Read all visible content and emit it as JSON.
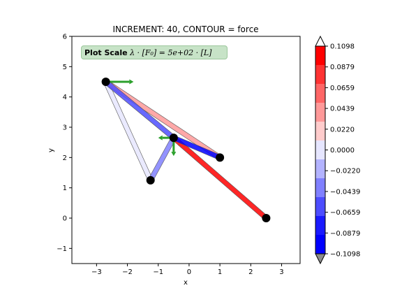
{
  "chart_data": {
    "type": "scatter",
    "title": "INCREMENT: 40, CONTOUR = force",
    "xlabel": "x",
    "ylabel": "y",
    "xlim": [
      -3.8,
      3.6
    ],
    "ylim": [
      -1.5,
      6.0
    ],
    "xticks": [
      -3,
      -2,
      -1,
      0,
      1,
      2,
      3
    ],
    "yticks": [
      -1,
      0,
      1,
      2,
      3,
      4,
      5,
      6
    ],
    "nodes": [
      {
        "x": -2.7,
        "y": 4.5
      },
      {
        "x": -0.5,
        "y": 2.65
      },
      {
        "x": 1.0,
        "y": 2.0
      },
      {
        "x": -1.25,
        "y": 1.25
      },
      {
        "x": 2.5,
        "y": 0.0
      }
    ],
    "elements": [
      {
        "from": 0,
        "to": 3,
        "value": 0.008
      },
      {
        "from": 0,
        "to": 2,
        "value": 0.03
      },
      {
        "from": 1,
        "to": 4,
        "value": 0.095
      },
      {
        "from": 0,
        "to": 1,
        "value": -0.06
      },
      {
        "from": 1,
        "to": 2,
        "value": -0.1
      },
      {
        "from": 3,
        "to": 1,
        "value": -0.04
      }
    ],
    "arrows": [
      {
        "x": -2.7,
        "y": 4.5,
        "dx": 0.9,
        "dy": 0
      },
      {
        "x": -0.5,
        "y": 2.65,
        "dx": -0.5,
        "dy": 0
      },
      {
        "x": -0.5,
        "y": 2.65,
        "dx": 0,
        "dy": -0.6
      }
    ],
    "arrow_color": "#2ca02c",
    "annotation": {
      "bold": "Plot Scale",
      "text": "λ · [F₀] =  5e+02 · [L]"
    },
    "colorbar": {
      "ticks": [
        "0.1098",
        "0.0879",
        "0.0659",
        "0.0439",
        "0.0220",
        "0.0000",
        "−0.0220",
        "−0.0439",
        "−0.0659",
        "−0.0879",
        "−0.1098"
      ],
      "colors_top_to_bottom": [
        "#ff0000",
        "#ff3333",
        "#ff6666",
        "#ff9999",
        "#ffcccc",
        "#e6e6ff",
        "#b3b3ff",
        "#8080ff",
        "#4d4dff",
        "#1a1aff",
        "#0000ff"
      ],
      "vmin": -0.1098,
      "vmax": 0.1098,
      "over_color": "#ffffff",
      "under_color": "#8c8c8c"
    }
  }
}
